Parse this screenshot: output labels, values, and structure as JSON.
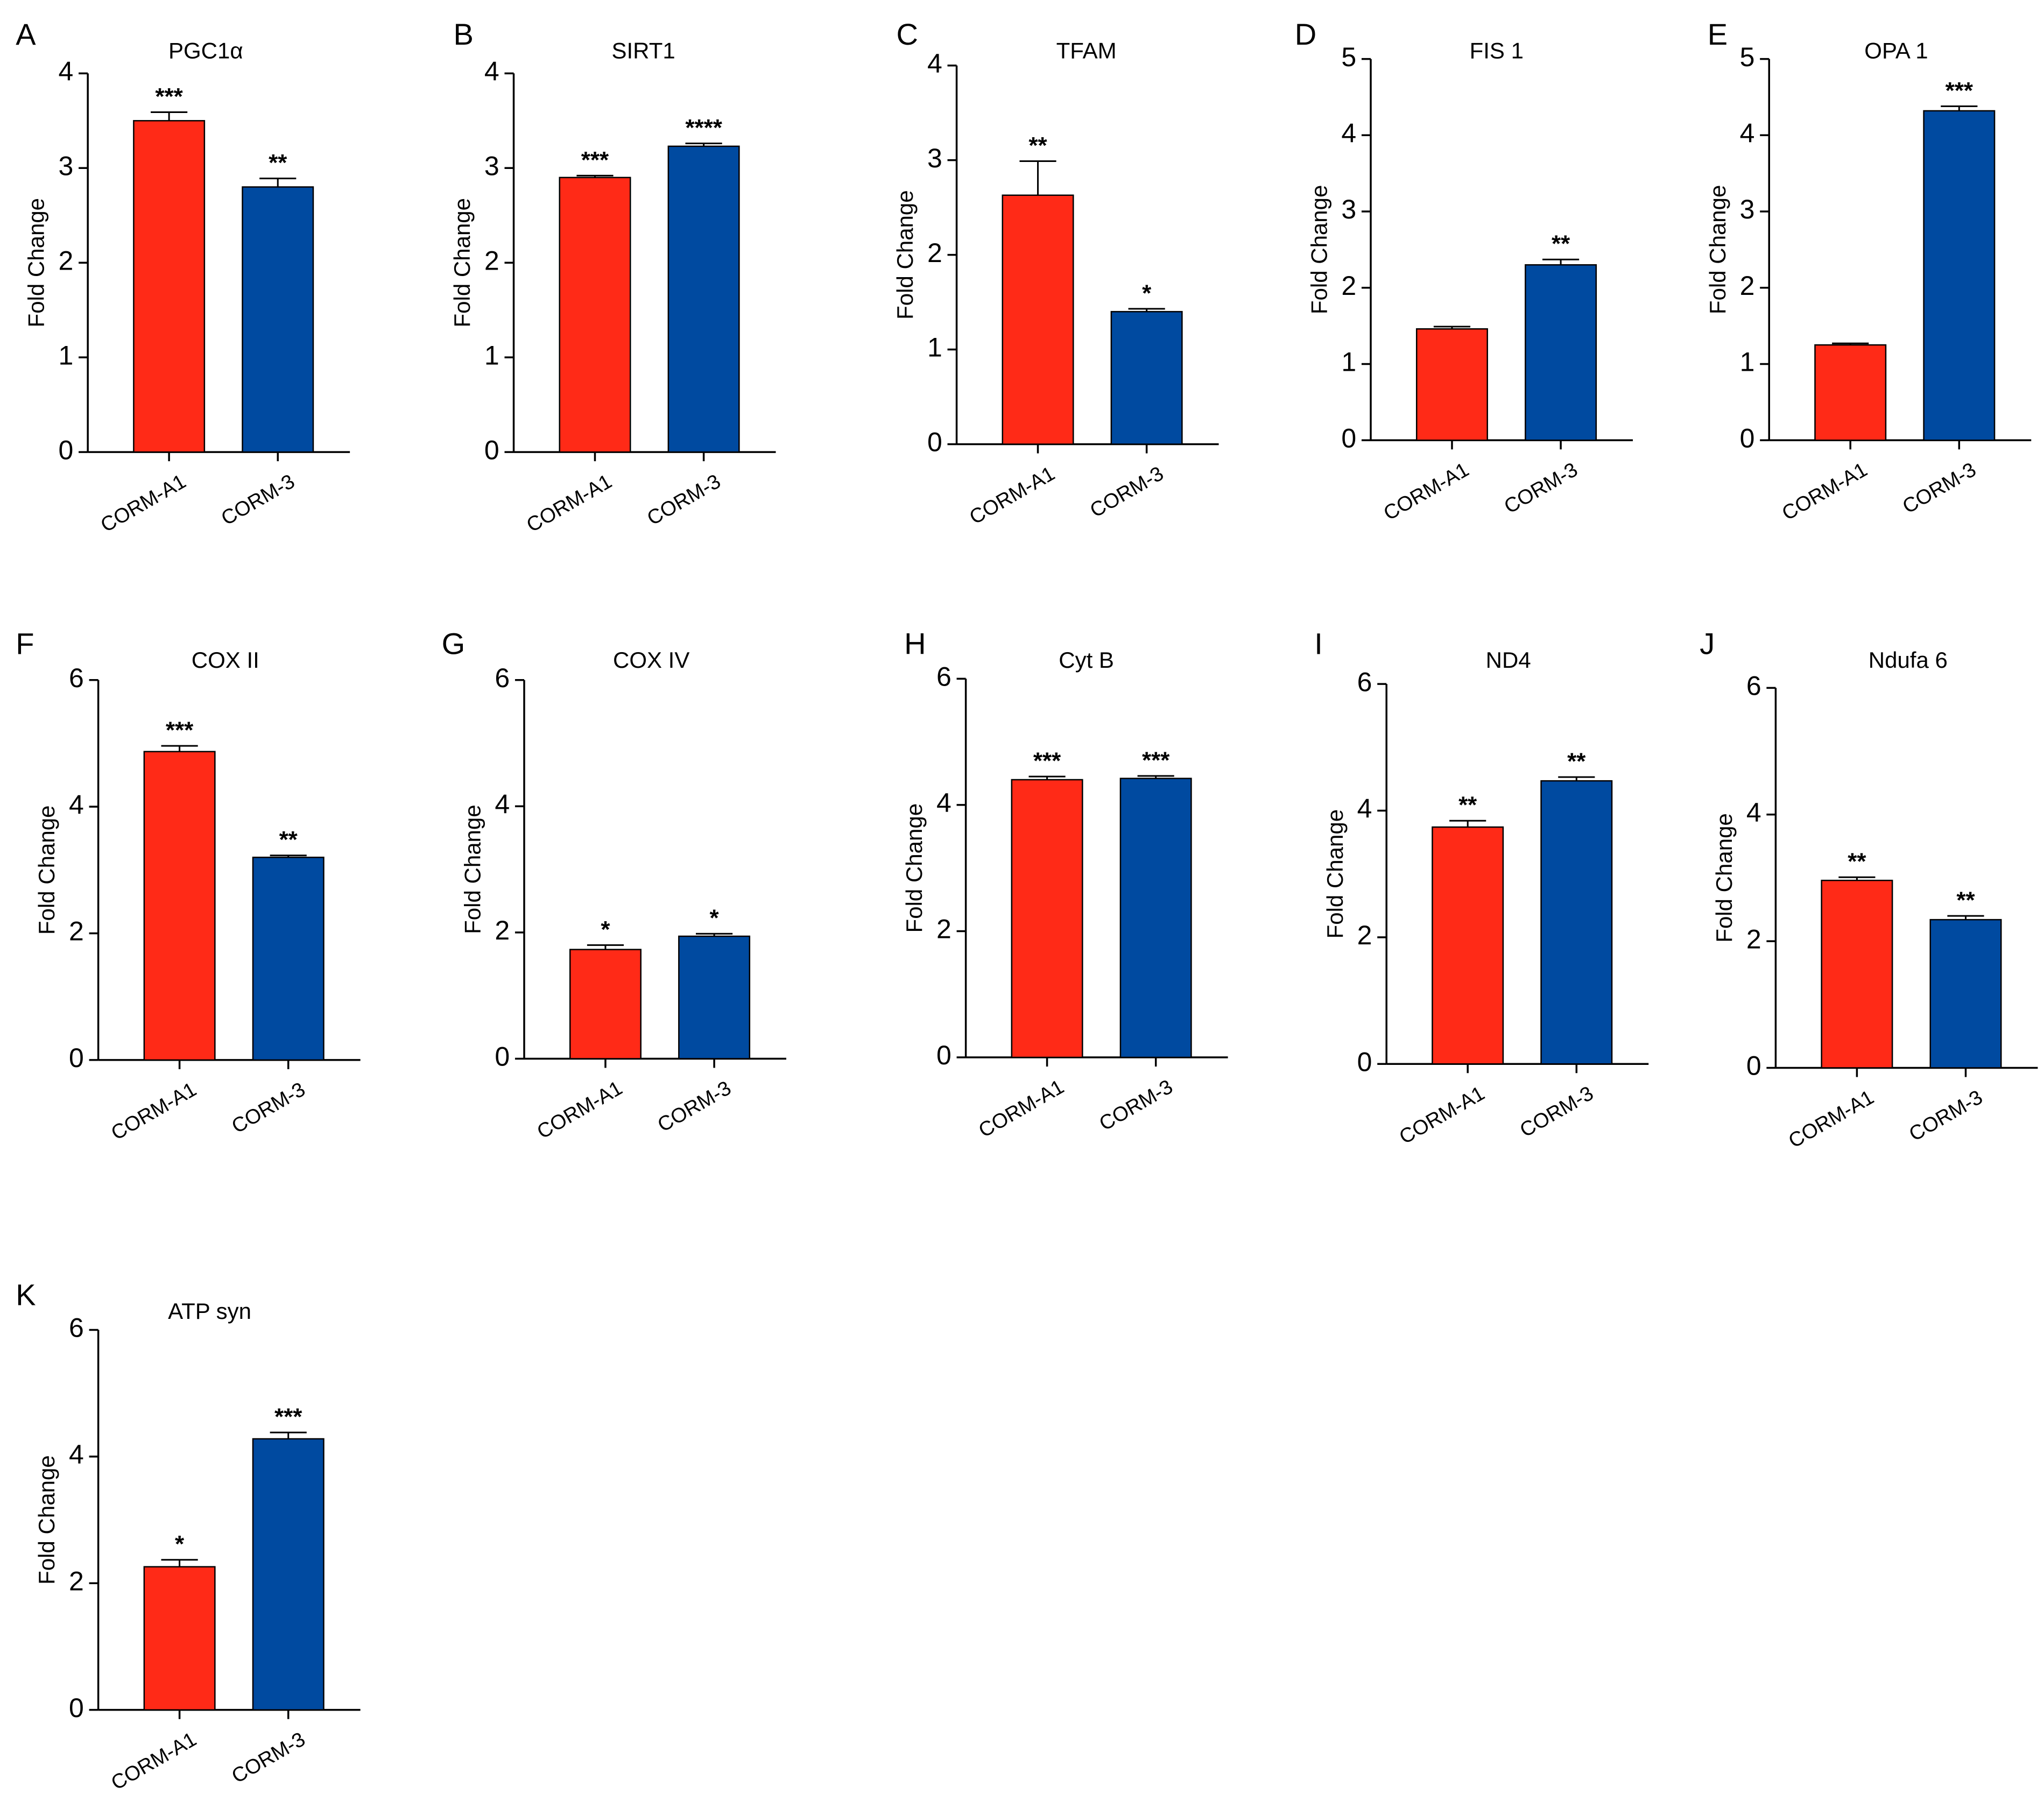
{
  "colors": {
    "corm_a1": "#ff2a17",
    "corm_3": "#004aa0"
  },
  "chart_data": [
    {
      "panel": "A",
      "type": "bar",
      "title": "PGC1α",
      "ylabel": "Fold Change",
      "ylim": [
        0,
        4
      ],
      "yticks": [
        "0",
        "1",
        "2",
        "3",
        "4"
      ],
      "categories": [
        "CORM-A1",
        "CORM-3"
      ],
      "values": [
        3.5,
        2.8
      ],
      "errors": [
        0.09,
        0.09
      ],
      "significance": [
        "***",
        "**"
      ]
    },
    {
      "panel": "B",
      "type": "bar",
      "title": "SIRT1",
      "ylabel": "Fold Change",
      "ylim": [
        0,
        4
      ],
      "yticks": [
        "0",
        "1",
        "2",
        "3",
        "4"
      ],
      "categories": [
        "CORM-A1",
        "CORM-3"
      ],
      "values": [
        2.9,
        3.23
      ],
      "errors": [
        0.02,
        0.03
      ],
      "significance": [
        "***",
        "****"
      ]
    },
    {
      "panel": "C",
      "type": "bar",
      "title": "TFAM",
      "ylabel": "Fold Change",
      "ylim": [
        0,
        4
      ],
      "yticks": [
        "0",
        "1",
        "2",
        "3",
        "4"
      ],
      "categories": [
        "CORM-A1",
        "CORM-3"
      ],
      "values": [
        2.63,
        1.4
      ],
      "errors": [
        0.36,
        0.03
      ],
      "significance": [
        "**",
        "*"
      ]
    },
    {
      "panel": "D",
      "type": "bar",
      "title": "FIS 1",
      "ylabel": "Fold Change",
      "ylim": [
        0,
        5
      ],
      "yticks": [
        "0",
        "1",
        "2",
        "3",
        "4",
        "5"
      ],
      "categories": [
        "CORM-A1",
        "CORM-3"
      ],
      "values": [
        1.46,
        2.3
      ],
      "errors": [
        0.03,
        0.07
      ],
      "significance": [
        "",
        "**"
      ]
    },
    {
      "panel": "E",
      "type": "bar",
      "title": "OPA 1",
      "ylabel": "Fold Change",
      "ylim": [
        0,
        5
      ],
      "yticks": [
        "0",
        "1",
        "2",
        "3",
        "4",
        "5"
      ],
      "categories": [
        "CORM-A1",
        "CORM-3"
      ],
      "values": [
        1.25,
        4.32
      ],
      "errors": [
        0.02,
        0.06
      ],
      "significance": [
        "",
        "***"
      ]
    },
    {
      "panel": "F",
      "type": "bar",
      "title": "COX II",
      "ylabel": "Fold Change",
      "ylim": [
        0,
        6
      ],
      "yticks": [
        "0",
        "2",
        "4",
        "6"
      ],
      "categories": [
        "CORM-A1",
        "CORM-3"
      ],
      "values": [
        4.87,
        3.2
      ],
      "errors": [
        0.09,
        0.03
      ],
      "significance": [
        "***",
        "**"
      ]
    },
    {
      "panel": "G",
      "type": "bar",
      "title": "COX IV",
      "ylabel": "Fold Change",
      "ylim": [
        0,
        6
      ],
      "yticks": [
        "0",
        "2",
        "4",
        "6"
      ],
      "categories": [
        "CORM-A1",
        "CORM-3"
      ],
      "values": [
        1.73,
        1.94
      ],
      "errors": [
        0.07,
        0.04
      ],
      "significance": [
        "*",
        "*"
      ]
    },
    {
      "panel": "H",
      "type": "bar",
      "title": "Cyt B",
      "ylabel": "Fold Change",
      "ylim": [
        0,
        6
      ],
      "yticks": [
        "0",
        "2",
        "4",
        "6"
      ],
      "categories": [
        "CORM-A1",
        "CORM-3"
      ],
      "values": [
        4.4,
        4.42
      ],
      "errors": [
        0.05,
        0.04
      ],
      "significance": [
        "***",
        "***"
      ]
    },
    {
      "panel": "I",
      "type": "bar",
      "title": "ND4",
      "ylabel": "Fold Change",
      "ylim": [
        0,
        6
      ],
      "yticks": [
        "0",
        "2",
        "4",
        "6"
      ],
      "categories": [
        "CORM-A1",
        "CORM-3"
      ],
      "values": [
        3.74,
        4.47
      ],
      "errors": [
        0.1,
        0.06
      ],
      "significance": [
        "**",
        "**"
      ]
    },
    {
      "panel": "J",
      "type": "bar",
      "title": "Ndufa 6",
      "ylabel": "Fold Change",
      "ylim": [
        0,
        6
      ],
      "yticks": [
        "0",
        "2",
        "4",
        "6"
      ],
      "categories": [
        "CORM-A1",
        "CORM-3"
      ],
      "values": [
        2.96,
        2.34
      ],
      "errors": [
        0.05,
        0.06
      ],
      "significance": [
        "**",
        "**"
      ]
    },
    {
      "panel": "K",
      "type": "bar",
      "title": "ATP syn",
      "ylabel": "Fold Change",
      "ylim": [
        0,
        6
      ],
      "yticks": [
        "0",
        "2",
        "4",
        "6"
      ],
      "categories": [
        "CORM-A1",
        "CORM-3"
      ],
      "values": [
        2.26,
        4.28
      ],
      "errors": [
        0.11,
        0.1
      ],
      "significance": [
        "*",
        "***"
      ]
    }
  ]
}
